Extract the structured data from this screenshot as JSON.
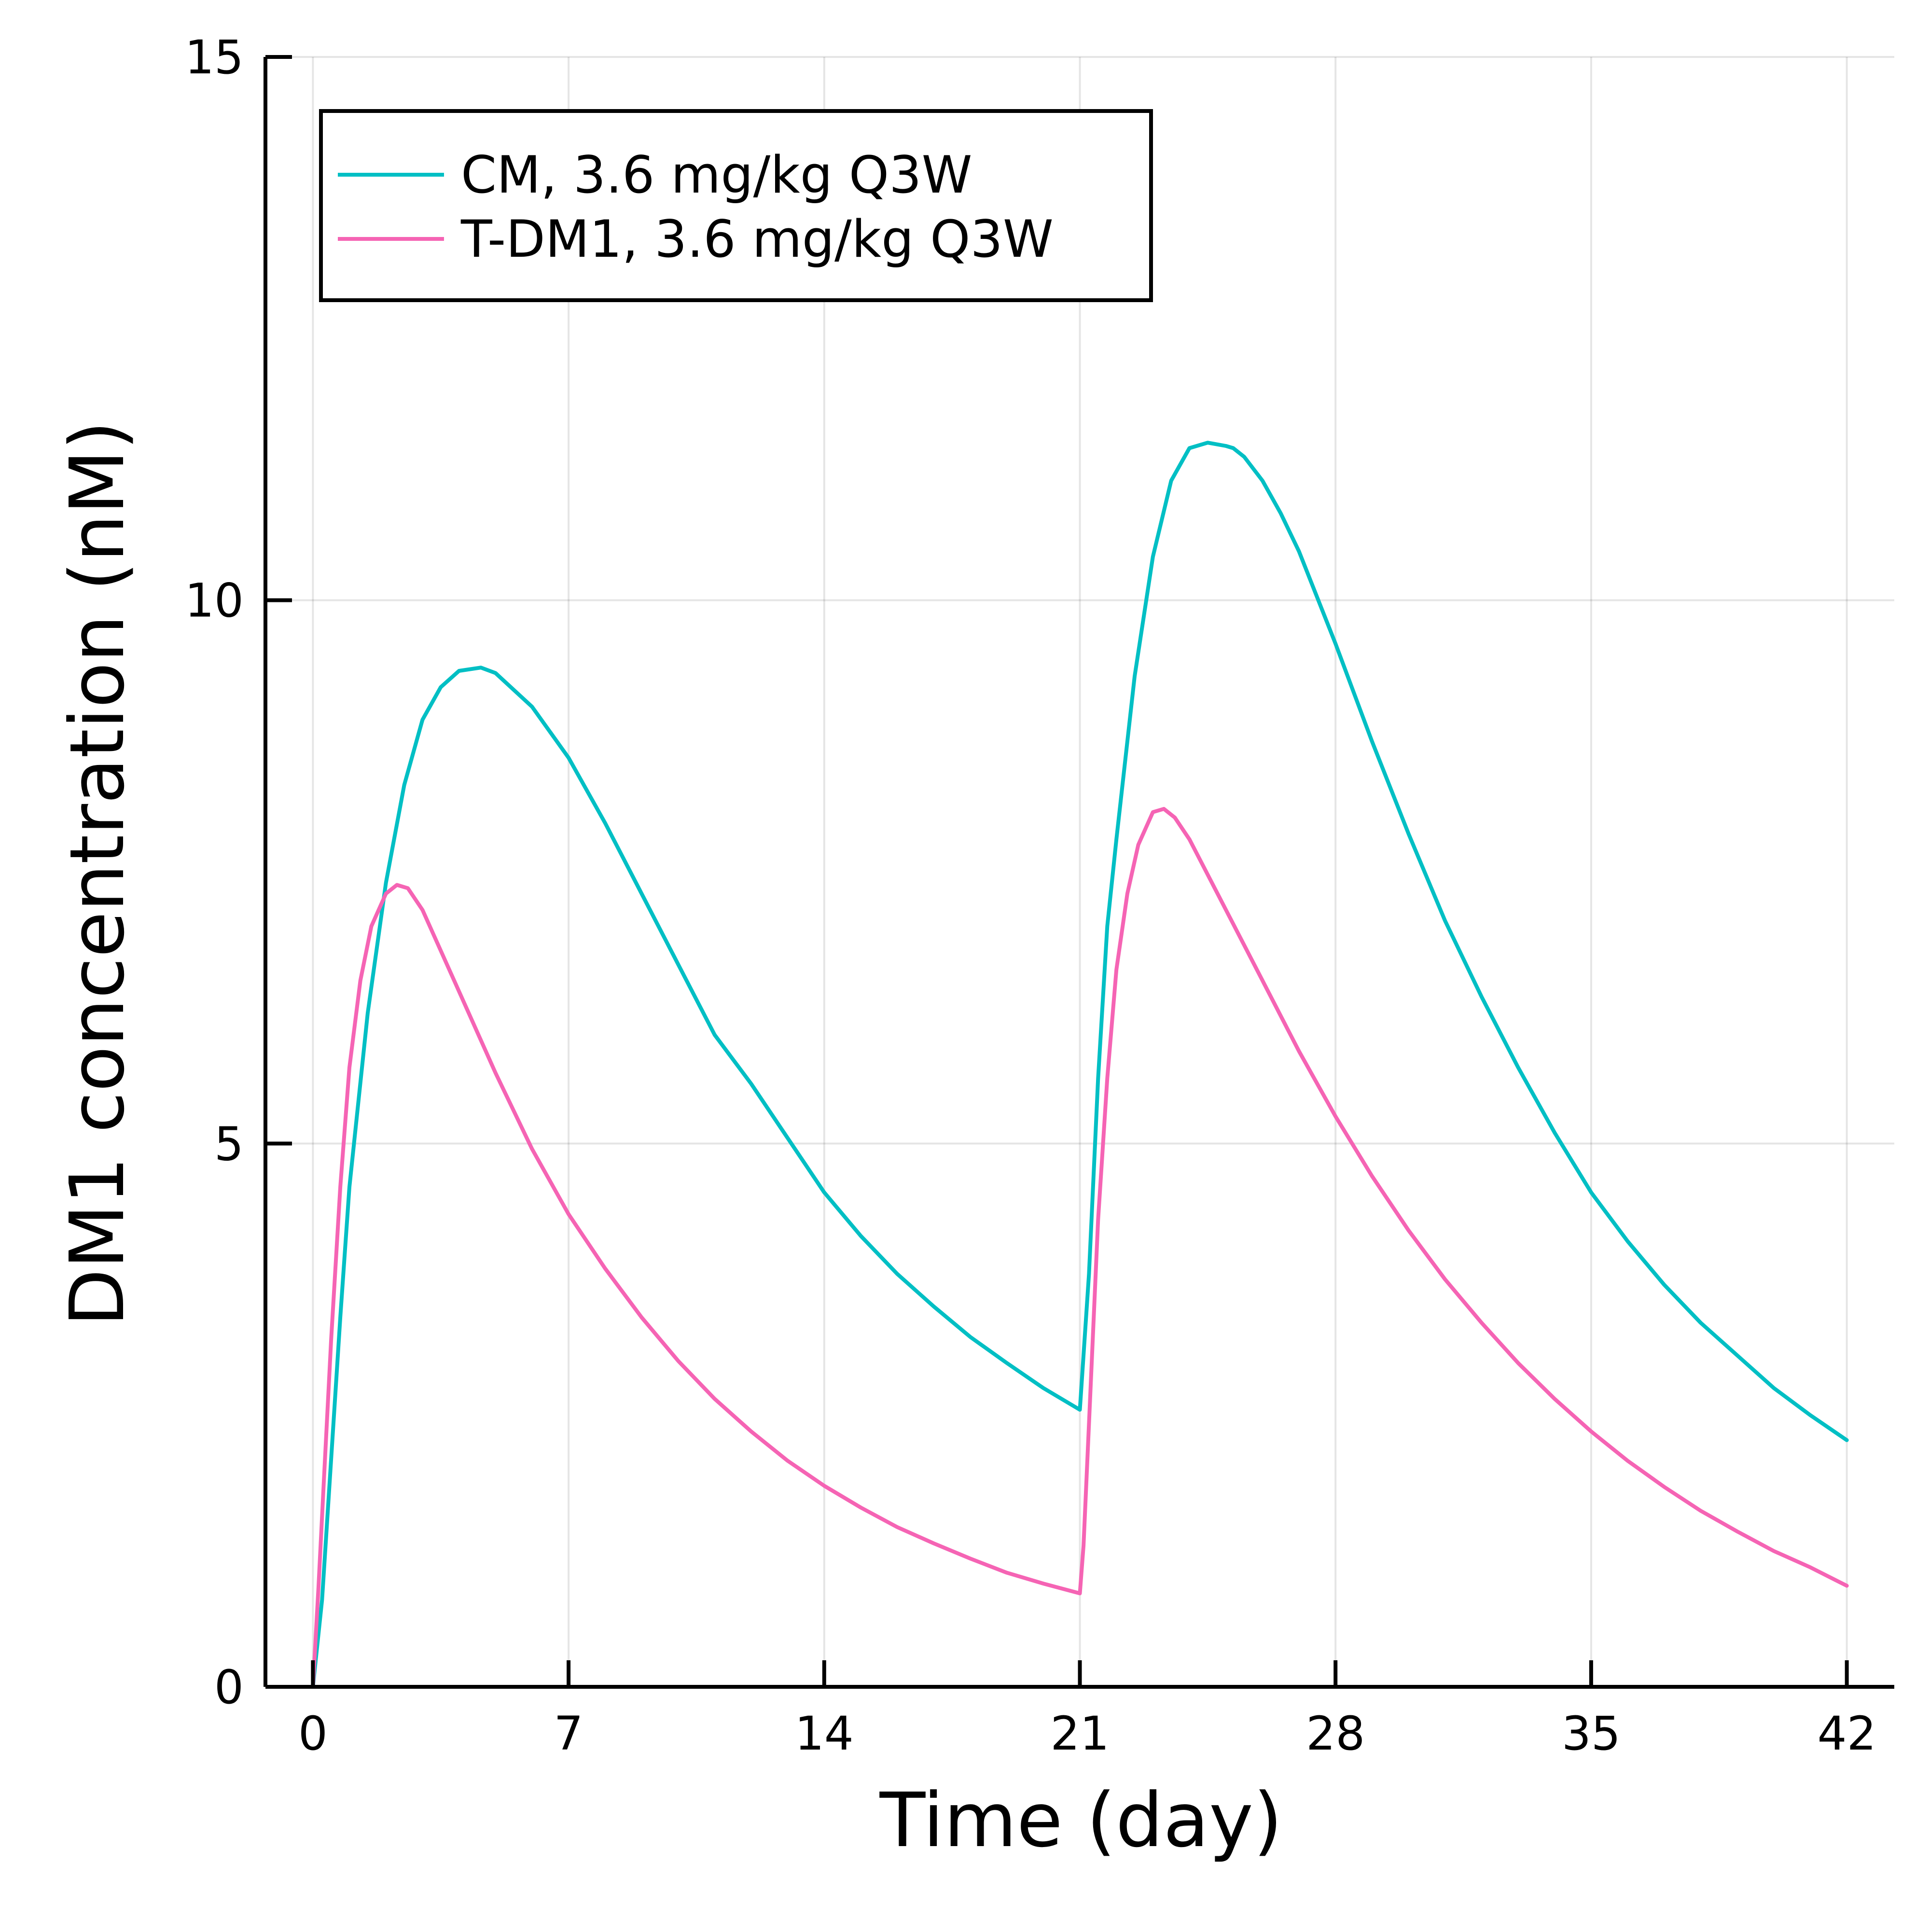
{
  "chart_data": {
    "type": "line",
    "title": "",
    "xlabel": "Time (day)",
    "ylabel": "DM1 concentration (nM)",
    "xlim": [
      -1.3,
      43.3
    ],
    "ylim": [
      0,
      15
    ],
    "xticks": [
      0,
      7,
      14,
      21,
      28,
      35,
      42
    ],
    "yticks": [
      0,
      5,
      10,
      15
    ],
    "grid": true,
    "legend_position": "top-left",
    "series": [
      {
        "name": "CM, 3.6 mg/kg Q3W",
        "color": "#00BFC4",
        "x": [
          0,
          0.25,
          0.5,
          0.75,
          1,
          1.5,
          2,
          2.5,
          3,
          3.5,
          4,
          4.6,
          5,
          6,
          7,
          8,
          9,
          10,
          11,
          12,
          13,
          14,
          15,
          16,
          17,
          18,
          19,
          20,
          21,
          21.25,
          21.5,
          21.75,
          22,
          22.5,
          23,
          23.5,
          24,
          24.5,
          25,
          25.2,
          25.5,
          26,
          26.5,
          27,
          28,
          29,
          30,
          31,
          32,
          33,
          34,
          35,
          36,
          37,
          38,
          39,
          40,
          41,
          42
        ],
        "y": [
          0,
          0.8,
          2.1,
          3.4,
          4.6,
          6.2,
          7.4,
          8.3,
          8.9,
          9.2,
          9.35,
          9.38,
          9.33,
          9.02,
          8.55,
          7.95,
          7.3,
          6.65,
          6.0,
          5.55,
          5.05,
          4.55,
          4.15,
          3.8,
          3.5,
          3.22,
          2.98,
          2.75,
          2.55,
          3.8,
          5.6,
          7.0,
          7.8,
          9.3,
          10.4,
          11.1,
          11.4,
          11.45,
          11.42,
          11.4,
          11.32,
          11.1,
          10.8,
          10.45,
          9.6,
          8.7,
          7.85,
          7.05,
          6.35,
          5.7,
          5.1,
          4.55,
          4.1,
          3.7,
          3.35,
          3.05,
          2.75,
          2.5,
          2.27
        ]
      },
      {
        "name": "T-DM1, 3.6 mg/kg Q3W",
        "color": "#F564B4",
        "x": [
          0,
          0.15,
          0.3,
          0.5,
          0.75,
          1,
          1.3,
          1.6,
          2,
          2.3,
          2.6,
          3,
          4,
          5,
          6,
          7,
          8,
          9,
          10,
          11,
          12,
          13,
          14,
          15,
          16,
          17,
          18,
          19,
          20,
          21,
          21.1,
          21.3,
          21.5,
          21.75,
          22,
          22.3,
          22.6,
          23,
          23.3,
          23.6,
          24,
          25,
          26,
          27,
          28,
          29,
          30,
          31,
          32,
          33,
          34,
          35,
          36,
          37,
          38,
          39,
          40,
          41,
          42
        ],
        "y": [
          0,
          0.9,
          1.9,
          3.2,
          4.6,
          5.7,
          6.5,
          7.0,
          7.3,
          7.38,
          7.35,
          7.15,
          6.4,
          5.65,
          4.95,
          4.35,
          3.85,
          3.4,
          3.0,
          2.65,
          2.35,
          2.08,
          1.85,
          1.65,
          1.47,
          1.32,
          1.18,
          1.05,
          0.95,
          0.86,
          1.3,
          2.8,
          4.3,
          5.6,
          6.6,
          7.3,
          7.75,
          8.05,
          8.08,
          8.0,
          7.8,
          7.15,
          6.5,
          5.85,
          5.25,
          4.7,
          4.2,
          3.75,
          3.35,
          2.98,
          2.65,
          2.35,
          2.08,
          1.84,
          1.62,
          1.43,
          1.25,
          1.1,
          0.93
        ]
      }
    ]
  }
}
